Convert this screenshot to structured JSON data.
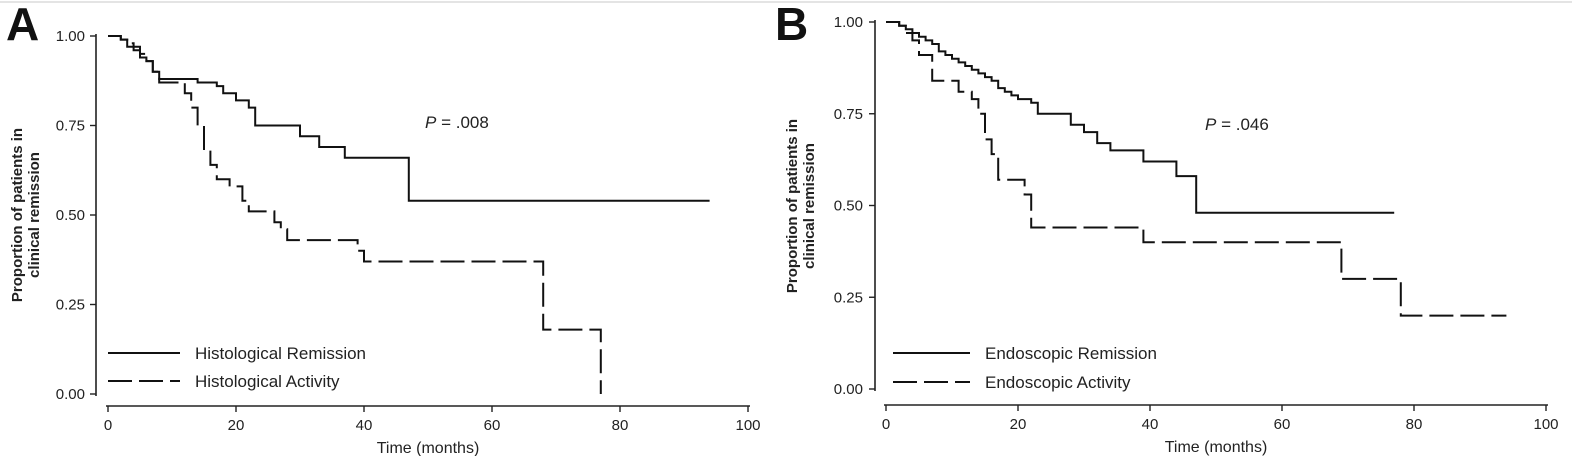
{
  "chart_data": [
    {
      "type": "line",
      "panel_label": "A",
      "xlabel": "Time (months)",
      "ylabel_lines": [
        "Proportion of patients in",
        "clinical remission"
      ],
      "xlim": [
        0,
        100
      ],
      "ylim": [
        0,
        1
      ],
      "xticks": [
        "0",
        "20",
        "40",
        "60",
        "80",
        "100"
      ],
      "yticks": [
        "0.00",
        "0.25",
        "0.50",
        "0.75",
        "1.00"
      ],
      "annotation": {
        "italic": "P",
        "rest": " = .008"
      },
      "legend_position": "bottom-left",
      "grid": false,
      "series": [
        {
          "name": "Histological Remission",
          "style": "solid",
          "x": [
            0,
            1,
            2,
            3,
            4,
            5,
            6,
            7,
            8,
            9,
            10,
            11,
            12,
            13,
            14,
            15,
            16,
            17,
            18,
            19,
            20,
            21,
            22,
            23,
            24,
            25,
            26,
            27,
            28,
            29,
            30,
            31,
            32,
            33,
            34,
            35,
            36,
            37,
            38,
            39,
            40,
            41,
            42,
            43,
            44,
            45,
            46,
            47,
            48,
            49,
            50,
            51,
            52,
            53,
            54,
            55,
            56,
            57,
            58,
            59,
            60,
            61,
            62,
            63,
            64,
            65,
            66,
            67,
            68,
            69,
            70,
            71,
            72,
            73,
            74,
            75,
            76,
            77,
            78,
            79,
            80,
            81,
            82,
            83,
            84,
            85,
            86,
            87,
            88,
            89,
            90,
            91,
            92,
            93,
            94
          ],
          "y": [
            1.0,
            1.0,
            0.99,
            0.97,
            0.96,
            0.94,
            0.93,
            0.9,
            0.88,
            0.88,
            0.88,
            0.88,
            0.88,
            0.88,
            0.87,
            0.87,
            0.87,
            0.86,
            0.84,
            0.84,
            0.82,
            0.82,
            0.8,
            0.75,
            0.75,
            0.75,
            0.75,
            0.75,
            0.75,
            0.75,
            0.72,
            0.72,
            0.72,
            0.69,
            0.69,
            0.69,
            0.69,
            0.66,
            0.66,
            0.66,
            0.66,
            0.66,
            0.66,
            0.66,
            0.66,
            0.66,
            0.66,
            0.54,
            0.54,
            0.54,
            0.54,
            0.54,
            0.54,
            0.54,
            0.54,
            0.54,
            0.54,
            0.54,
            0.54,
            0.54,
            0.54,
            0.54,
            0.54,
            0.54,
            0.54,
            0.54,
            0.54,
            0.54,
            0.54,
            0.54,
            0.54,
            0.54,
            0.54,
            0.54,
            0.54,
            0.54,
            0.54,
            0.54,
            0.54,
            0.54,
            0.54,
            0.54,
            0.54,
            0.54,
            0.54,
            0.54,
            0.54,
            0.54,
            0.54,
            0.54,
            0.54,
            0.54,
            0.54,
            0.54,
            0.54
          ]
        },
        {
          "name": "Histological Activity",
          "style": "dashed",
          "x": [
            0,
            1,
            2,
            3,
            4,
            5,
            6,
            7,
            8,
            9,
            10,
            11,
            12,
            13,
            14,
            15,
            16,
            17,
            18,
            19,
            20,
            21,
            22,
            23,
            24,
            25,
            26,
            27,
            28,
            29,
            30,
            31,
            32,
            33,
            34,
            35,
            36,
            37,
            38,
            39,
            40,
            41,
            42,
            43,
            44,
            45,
            46,
            47,
            48,
            49,
            50,
            51,
            52,
            53,
            54,
            55,
            56,
            57,
            58,
            59,
            60,
            61,
            62,
            63,
            64,
            65,
            66,
            67,
            68,
            69,
            70,
            71,
            72,
            73,
            74,
            75,
            76,
            77
          ],
          "y": [
            1.0,
            1.0,
            0.99,
            0.98,
            0.97,
            0.95,
            0.93,
            0.9,
            0.87,
            0.87,
            0.87,
            0.87,
            0.84,
            0.8,
            0.75,
            0.68,
            0.64,
            0.6,
            0.6,
            0.58,
            0.58,
            0.54,
            0.51,
            0.51,
            0.51,
            0.51,
            0.48,
            0.46,
            0.43,
            0.43,
            0.43,
            0.43,
            0.43,
            0.43,
            0.43,
            0.43,
            0.43,
            0.43,
            0.43,
            0.4,
            0.37,
            0.37,
            0.37,
            0.37,
            0.37,
            0.37,
            0.37,
            0.37,
            0.37,
            0.37,
            0.37,
            0.37,
            0.37,
            0.37,
            0.37,
            0.37,
            0.37,
            0.37,
            0.37,
            0.37,
            0.37,
            0.37,
            0.37,
            0.37,
            0.37,
            0.37,
            0.37,
            0.37,
            0.18,
            0.18,
            0.18,
            0.18,
            0.18,
            0.18,
            0.18,
            0.18,
            0.18,
            0.0
          ]
        }
      ]
    },
    {
      "type": "line",
      "panel_label": "B",
      "xlabel": "Time (months)",
      "ylabel_lines": [
        "Proportion of patients in",
        "clinical remission"
      ],
      "xlim": [
        0,
        100
      ],
      "ylim": [
        0,
        1
      ],
      "xticks": [
        "0",
        "20",
        "40",
        "60",
        "80",
        "100"
      ],
      "yticks": [
        "0.00",
        "0.25",
        "0.50",
        "0.75",
        "1.00"
      ],
      "annotation": {
        "italic": "P",
        "rest": " = .046"
      },
      "legend_position": "bottom-left",
      "grid": false,
      "series": [
        {
          "name": "Endoscopic Remission",
          "style": "solid",
          "x": [
            0,
            1,
            2,
            3,
            4,
            5,
            6,
            7,
            8,
            9,
            10,
            11,
            12,
            13,
            14,
            15,
            16,
            17,
            18,
            19,
            20,
            21,
            22,
            23,
            24,
            25,
            26,
            27,
            28,
            29,
            30,
            31,
            32,
            33,
            34,
            35,
            36,
            37,
            38,
            39,
            40,
            41,
            42,
            43,
            44,
            45,
            46,
            47,
            48,
            49,
            50,
            51,
            52,
            53,
            54,
            55,
            56,
            57,
            58,
            59,
            60,
            61,
            62,
            63,
            64,
            65,
            66,
            67,
            68,
            69,
            70,
            71,
            72,
            73,
            74,
            75,
            76,
            77
          ],
          "y": [
            1.0,
            1.0,
            0.99,
            0.98,
            0.97,
            0.96,
            0.95,
            0.94,
            0.92,
            0.91,
            0.9,
            0.89,
            0.88,
            0.87,
            0.86,
            0.85,
            0.84,
            0.82,
            0.81,
            0.8,
            0.79,
            0.79,
            0.78,
            0.75,
            0.75,
            0.75,
            0.75,
            0.75,
            0.72,
            0.72,
            0.7,
            0.7,
            0.67,
            0.67,
            0.65,
            0.65,
            0.65,
            0.65,
            0.65,
            0.62,
            0.62,
            0.62,
            0.62,
            0.62,
            0.58,
            0.58,
            0.58,
            0.48,
            0.48,
            0.48,
            0.48,
            0.48,
            0.48,
            0.48,
            0.48,
            0.48,
            0.48,
            0.48,
            0.48,
            0.48,
            0.48,
            0.48,
            0.48,
            0.48,
            0.48,
            0.48,
            0.48,
            0.48,
            0.48,
            0.48,
            0.48,
            0.48,
            0.48,
            0.48,
            0.48,
            0.48,
            0.48,
            0.48
          ]
        },
        {
          "name": "Endoscopic Activity",
          "style": "dashed",
          "x": [
            0,
            1,
            2,
            3,
            4,
            5,
            6,
            7,
            8,
            9,
            10,
            11,
            12,
            13,
            14,
            15,
            16,
            17,
            18,
            19,
            20,
            21,
            22,
            23,
            24,
            25,
            26,
            27,
            28,
            29,
            30,
            31,
            32,
            33,
            34,
            35,
            36,
            37,
            38,
            39,
            40,
            41,
            42,
            43,
            44,
            45,
            46,
            47,
            48,
            49,
            50,
            51,
            52,
            53,
            54,
            55,
            56,
            57,
            58,
            59,
            60,
            61,
            62,
            63,
            64,
            65,
            66,
            67,
            68,
            69,
            70,
            71,
            72,
            73,
            74,
            75,
            76,
            77,
            78,
            79,
            80,
            81,
            82,
            83,
            84,
            85,
            86,
            87,
            88,
            89,
            90,
            91,
            92,
            93,
            94
          ],
          "y": [
            1.0,
            1.0,
            0.99,
            0.97,
            0.95,
            0.91,
            0.91,
            0.84,
            0.84,
            0.84,
            0.84,
            0.81,
            0.81,
            0.79,
            0.75,
            0.68,
            0.64,
            0.57,
            0.57,
            0.57,
            0.57,
            0.53,
            0.44,
            0.44,
            0.44,
            0.44,
            0.44,
            0.44,
            0.44,
            0.44,
            0.44,
            0.44,
            0.44,
            0.44,
            0.44,
            0.44,
            0.44,
            0.44,
            0.44,
            0.4,
            0.4,
            0.4,
            0.4,
            0.4,
            0.4,
            0.4,
            0.4,
            0.4,
            0.4,
            0.4,
            0.4,
            0.4,
            0.4,
            0.4,
            0.4,
            0.4,
            0.4,
            0.4,
            0.4,
            0.4,
            0.4,
            0.4,
            0.4,
            0.4,
            0.4,
            0.4,
            0.4,
            0.4,
            0.4,
            0.3,
            0.3,
            0.3,
            0.3,
            0.3,
            0.3,
            0.3,
            0.3,
            0.3,
            0.2,
            0.2,
            0.2,
            0.2,
            0.2,
            0.2,
            0.2,
            0.2,
            0.2,
            0.2,
            0.2,
            0.2,
            0.2,
            0.2,
            0.2,
            0.2,
            0.2
          ]
        }
      ]
    }
  ]
}
